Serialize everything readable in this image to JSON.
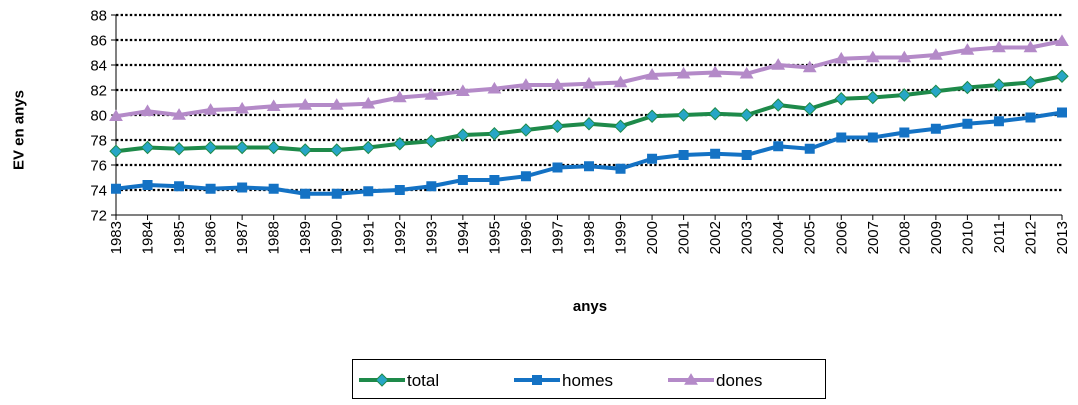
{
  "chart_data": {
    "type": "line",
    "title": "",
    "xlabel": "anys",
    "ylabel": "EV en anys",
    "ylim": [
      72,
      88
    ],
    "yticks": [
      72,
      74,
      76,
      78,
      80,
      82,
      84,
      86,
      88
    ],
    "grid": true,
    "legend_position": "bottom",
    "categories": [
      "1983",
      "1984",
      "1985",
      "1986",
      "1987",
      "1988",
      "1989",
      "1990",
      "1991",
      "1992",
      "1993",
      "1994",
      "1995",
      "1996",
      "1997",
      "1998",
      "1999",
      "2000",
      "2001",
      "2002",
      "2003",
      "2004",
      "2005",
      "2006",
      "2007",
      "2008",
      "2009",
      "2010",
      "2011",
      "2012",
      "2013"
    ],
    "series": [
      {
        "name": "total",
        "color": "#1e8a4a",
        "marker_color": "#27a6c6",
        "marker": "diamond",
        "values": [
          77.1,
          77.4,
          77.3,
          77.4,
          77.4,
          77.4,
          77.2,
          77.2,
          77.4,
          77.7,
          77.9,
          78.4,
          78.5,
          78.8,
          79.1,
          79.3,
          79.1,
          79.9,
          80.0,
          80.1,
          80.0,
          80.8,
          80.5,
          81.3,
          81.4,
          81.6,
          81.9,
          82.2,
          82.4,
          82.6,
          83.1
        ]
      },
      {
        "name": "homes",
        "color": "#1472c4",
        "marker_color": "#1472c4",
        "marker": "square",
        "values": [
          74.1,
          74.4,
          74.3,
          74.1,
          74.2,
          74.1,
          73.7,
          73.7,
          73.9,
          74.0,
          74.3,
          74.8,
          74.8,
          75.1,
          75.8,
          75.9,
          75.7,
          76.5,
          76.8,
          76.9,
          76.8,
          77.5,
          77.3,
          78.2,
          78.2,
          78.6,
          78.9,
          79.3,
          79.5,
          79.8,
          80.2
        ]
      },
      {
        "name": "dones",
        "color": "#b48ac8",
        "marker_color": "#b48ac8",
        "marker": "triangle",
        "values": [
          79.9,
          80.3,
          80.0,
          80.4,
          80.5,
          80.7,
          80.8,
          80.8,
          80.9,
          81.4,
          81.6,
          81.9,
          82.1,
          82.4,
          82.4,
          82.5,
          82.6,
          83.2,
          83.3,
          83.4,
          83.3,
          84.0,
          83.8,
          84.5,
          84.6,
          84.6,
          84.8,
          85.2,
          85.4,
          85.4,
          85.9
        ]
      }
    ]
  }
}
